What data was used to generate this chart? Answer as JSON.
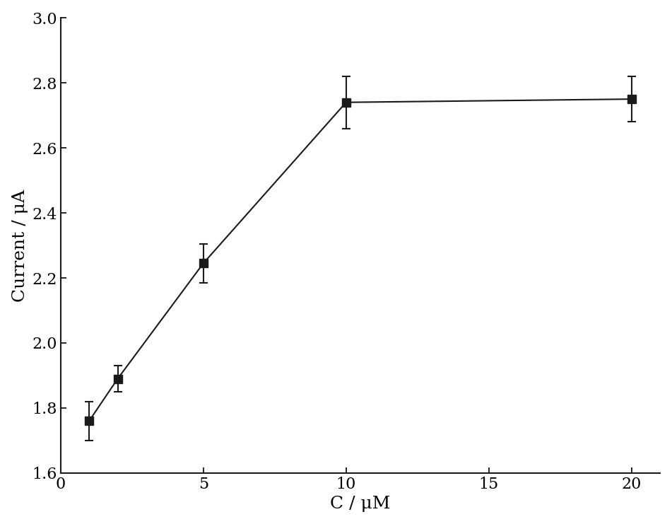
{
  "x": [
    1,
    2,
    5,
    10,
    20
  ],
  "y": [
    1.76,
    1.89,
    2.245,
    2.74,
    2.75
  ],
  "yerr": [
    0.06,
    0.04,
    0.06,
    0.08,
    0.07
  ],
  "xlabel": "C / μM",
  "ylabel": "Current / μA",
  "xlim": [
    0,
    21
  ],
  "ylim": [
    1.6,
    3.0
  ],
  "xticks": [
    0,
    5,
    10,
    15,
    20
  ],
  "yticks": [
    1.6,
    1.8,
    2.0,
    2.2,
    2.4,
    2.6,
    2.8,
    3.0
  ],
  "marker": "-s",
  "marker_size": 8,
  "line_color": "#1a1a1a",
  "marker_color": "#1a1a1a",
  "background_color": "#ffffff",
  "label_fontsize": 18,
  "tick_fontsize": 16
}
